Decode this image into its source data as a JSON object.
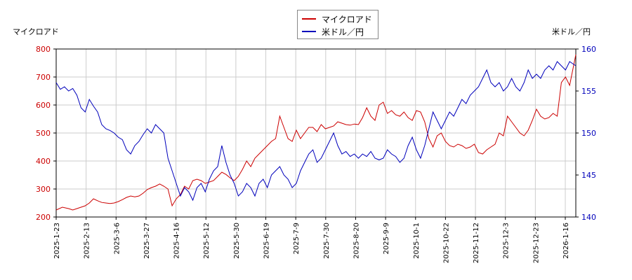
{
  "chart_data": {
    "type": "line",
    "left_axis": {
      "label": "マイクロアド",
      "ylim": [
        200,
        800
      ],
      "ticks": [
        200,
        300,
        400,
        500,
        600,
        700,
        800
      ]
    },
    "right_axis": {
      "label": "米ドル／円",
      "ylim": [
        140,
        160
      ],
      "ticks": [
        140,
        145,
        150,
        155,
        160
      ]
    },
    "x_ticks": [
      "2025-1-23",
      "2025-2-13",
      "2025-3-6",
      "2025-3-27",
      "2025-4-16",
      "2025-5-12",
      "2025-5-30",
      "2025-6-19",
      "2025-7-9",
      "2025-7-30",
      "2025-8-20",
      "2025-9-9",
      "2025-10-1",
      "2025-10-22",
      "2025-11-12",
      "2025-12-3",
      "2025-12-23",
      "2026-1-16"
    ],
    "x_range": [
      0,
      251
    ],
    "legend": {
      "position": "top-center"
    },
    "grid": true,
    "colors": {
      "series1": "#cc0000",
      "series2": "#0000bb"
    },
    "series": [
      {
        "name": "マイクロアド",
        "axis": "left",
        "x": [
          0,
          3,
          6,
          8,
          10,
          12,
          14,
          16,
          18,
          20,
          22,
          24,
          26,
          28,
          30,
          32,
          34,
          36,
          38,
          40,
          42,
          44,
          46,
          48,
          50,
          52,
          54,
          56,
          58,
          60,
          62,
          64,
          66,
          68,
          70,
          72,
          74,
          76,
          78,
          80,
          82,
          84,
          86,
          88,
          90,
          92,
          94,
          96,
          98,
          100,
          102,
          104,
          106,
          108,
          110,
          112,
          114,
          116,
          118,
          120,
          122,
          124,
          126,
          128,
          130,
          132,
          134,
          136,
          138,
          140,
          142,
          144,
          146,
          148,
          150,
          152,
          154,
          156,
          158,
          160,
          162,
          164,
          166,
          168,
          170,
          172,
          174,
          176,
          178,
          180,
          182,
          184,
          186,
          188,
          190,
          192,
          194,
          196,
          198,
          200,
          202,
          204,
          206,
          208,
          210,
          212,
          214,
          216,
          218,
          220,
          222,
          224,
          226,
          228,
          230,
          232,
          234,
          236,
          238,
          240,
          242,
          244,
          246,
          248,
          251
        ],
        "values": [
          225,
          235,
          230,
          225,
          230,
          235,
          240,
          250,
          265,
          258,
          252,
          250,
          248,
          250,
          255,
          262,
          270,
          275,
          272,
          275,
          285,
          298,
          305,
          310,
          318,
          310,
          300,
          240,
          265,
          280,
          310,
          300,
          330,
          335,
          330,
          320,
          325,
          330,
          345,
          360,
          352,
          340,
          330,
          345,
          370,
          400,
          380,
          410,
          425,
          440,
          455,
          470,
          480,
          560,
          520,
          480,
          470,
          510,
          480,
          500,
          520,
          520,
          505,
          530,
          515,
          520,
          525,
          540,
          535,
          530,
          528,
          532,
          530,
          555,
          590,
          560,
          545,
          600,
          610,
          570,
          580,
          565,
          560,
          575,
          555,
          545,
          580,
          575,
          540,
          480,
          450,
          490,
          500,
          470,
          455,
          450,
          460,
          455,
          445,
          450,
          460,
          430,
          425,
          440,
          450,
          460,
          500,
          490,
          560,
          540,
          520,
          500,
          490,
          510,
          545,
          585,
          560,
          550,
          555,
          570,
          560,
          680,
          700,
          670,
          780
        ]
      },
      {
        "name": "米ドル／円",
        "axis": "right",
        "x": [
          0,
          2,
          4,
          6,
          8,
          10,
          12,
          14,
          16,
          18,
          20,
          22,
          24,
          26,
          28,
          30,
          32,
          34,
          36,
          38,
          40,
          42,
          44,
          46,
          48,
          50,
          52,
          54,
          56,
          58,
          60,
          62,
          64,
          66,
          68,
          70,
          72,
          74,
          76,
          78,
          80,
          82,
          84,
          86,
          88,
          90,
          92,
          94,
          96,
          98,
          100,
          102,
          104,
          106,
          108,
          110,
          112,
          114,
          116,
          118,
          120,
          122,
          124,
          126,
          128,
          130,
          132,
          134,
          136,
          138,
          140,
          142,
          144,
          146,
          148,
          150,
          152,
          154,
          156,
          158,
          160,
          162,
          164,
          166,
          168,
          170,
          172,
          174,
          176,
          178,
          180,
          182,
          184,
          186,
          188,
          190,
          192,
          194,
          196,
          198,
          200,
          202,
          204,
          206,
          208,
          210,
          212,
          214,
          216,
          218,
          220,
          222,
          224,
          226,
          228,
          230,
          232,
          234,
          236,
          238,
          240,
          242,
          244,
          246,
          248,
          251
        ],
        "values": [
          156.0,
          155.2,
          155.5,
          155.0,
          155.3,
          154.5,
          153.0,
          152.5,
          154.0,
          153.2,
          152.5,
          151.0,
          150.5,
          150.3,
          150.0,
          149.5,
          149.2,
          148.0,
          147.5,
          148.5,
          149.0,
          149.8,
          150.5,
          150.0,
          151.0,
          150.5,
          150.0,
          147.0,
          145.5,
          144.0,
          142.5,
          143.5,
          143.0,
          142.0,
          143.5,
          144.0,
          143.0,
          144.5,
          145.5,
          146.0,
          148.5,
          146.5,
          145.0,
          144.0,
          142.5,
          143.0,
          144.0,
          143.5,
          142.5,
          144.0,
          144.5,
          143.5,
          145.0,
          145.5,
          146.0,
          145.0,
          144.5,
          143.5,
          144.0,
          145.5,
          146.5,
          147.5,
          148.0,
          146.5,
          147.0,
          148.0,
          149.0,
          150.0,
          148.5,
          147.5,
          147.8,
          147.2,
          147.5,
          147.0,
          147.5,
          147.2,
          147.8,
          147.0,
          146.8,
          147.0,
          148.0,
          147.5,
          147.2,
          146.5,
          147.0,
          148.5,
          149.5,
          148.0,
          147.0,
          148.5,
          150.5,
          152.5,
          151.5,
          150.5,
          151.5,
          152.5,
          152.0,
          153.0,
          154.0,
          153.5,
          154.5,
          155.0,
          155.5,
          156.5,
          157.5,
          156.0,
          155.5,
          156.0,
          155.0,
          155.5,
          156.5,
          155.5,
          155.0,
          156.0,
          157.5,
          156.5,
          157.0,
          156.5,
          157.5,
          158.0,
          157.5,
          158.5,
          158.0,
          157.5,
          158.5,
          158.0
        ]
      }
    ]
  }
}
